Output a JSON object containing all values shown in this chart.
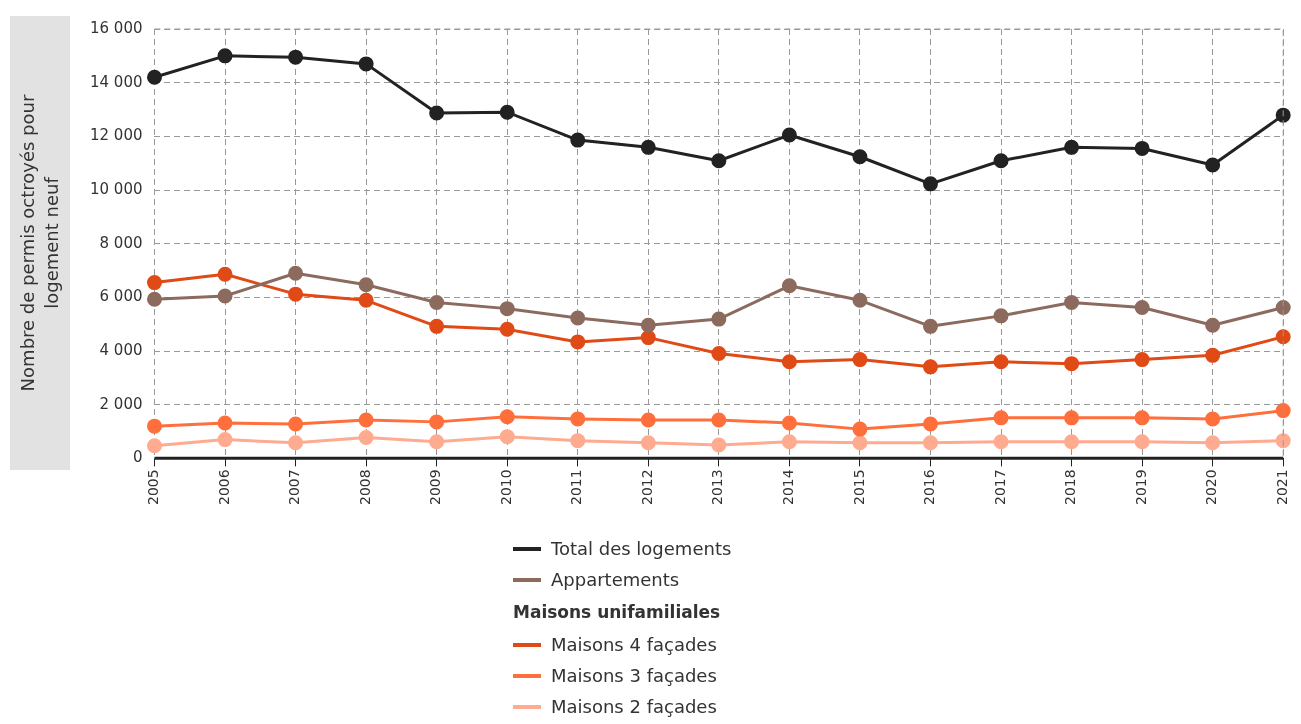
{
  "chart_data": {
    "type": "line",
    "ylabel": "Nombre de permis octroyés pour logement neuf",
    "categories": [
      "2005",
      "2006",
      "2007",
      "2008",
      "2009",
      "2010",
      "2011",
      "2012",
      "2013",
      "2014",
      "2015",
      "2016",
      "2017",
      "2018",
      "2019",
      "2020",
      "2021"
    ],
    "series": [
      {
        "name": "Total des logements",
        "color": "#222222",
        "values": [
          14200,
          15000,
          14950,
          14700,
          12870,
          12900,
          11860,
          11590,
          11090,
          12050,
          11240,
          10230,
          11090,
          11590,
          11550,
          10930,
          12790
        ]
      },
      {
        "name": "Appartements",
        "color": "#8c6b5e",
        "values": [
          5930,
          6050,
          6900,
          6470,
          5810,
          5580,
          5230,
          4960,
          5190,
          6430,
          5890,
          4920,
          5310,
          5810,
          5620,
          4960,
          5620
        ]
      },
      {
        "name": "Maisons 4 façades",
        "color": "#e04a16",
        "values": [
          6550,
          6860,
          6120,
          5890,
          4920,
          4810,
          4340,
          4500,
          3910,
          3600,
          3680,
          3410,
          3600,
          3530,
          3680,
          3840,
          4530
        ]
      },
      {
        "name": "Maisons 3 façades",
        "color": "#ff6f3c",
        "values": [
          1200,
          1320,
          1280,
          1430,
          1360,
          1550,
          1470,
          1430,
          1430,
          1320,
          1090,
          1280,
          1510,
          1510,
          1510,
          1470,
          1780
        ]
      },
      {
        "name": "Maisons 2 façades",
        "color": "#ffab90",
        "values": [
          470,
          700,
          580,
          780,
          620,
          810,
          660,
          580,
          500,
          620,
          580,
          580,
          620,
          620,
          620,
          580,
          660
        ]
      }
    ],
    "legend_title": "Maisons unifamiliales",
    "ylim": [
      0,
      16000
    ],
    "yticks": [
      0,
      {
        "value": 2000,
        "label": "2 000"
      },
      {
        "value": 4000,
        "label": "4 000"
      },
      {
        "value": 6000,
        "label": "6 000"
      },
      {
        "value": 8000,
        "label": "8 000"
      },
      {
        "value": 10000,
        "label": "10 000"
      },
      {
        "value": 12000,
        "label": "12 000"
      },
      {
        "value": 14000,
        "label": "14 000"
      },
      {
        "value": 16000,
        "label": "16 000"
      }
    ],
    "grid": true,
    "legend": "bottom",
    "marker": "circle",
    "line_style": "solid"
  }
}
